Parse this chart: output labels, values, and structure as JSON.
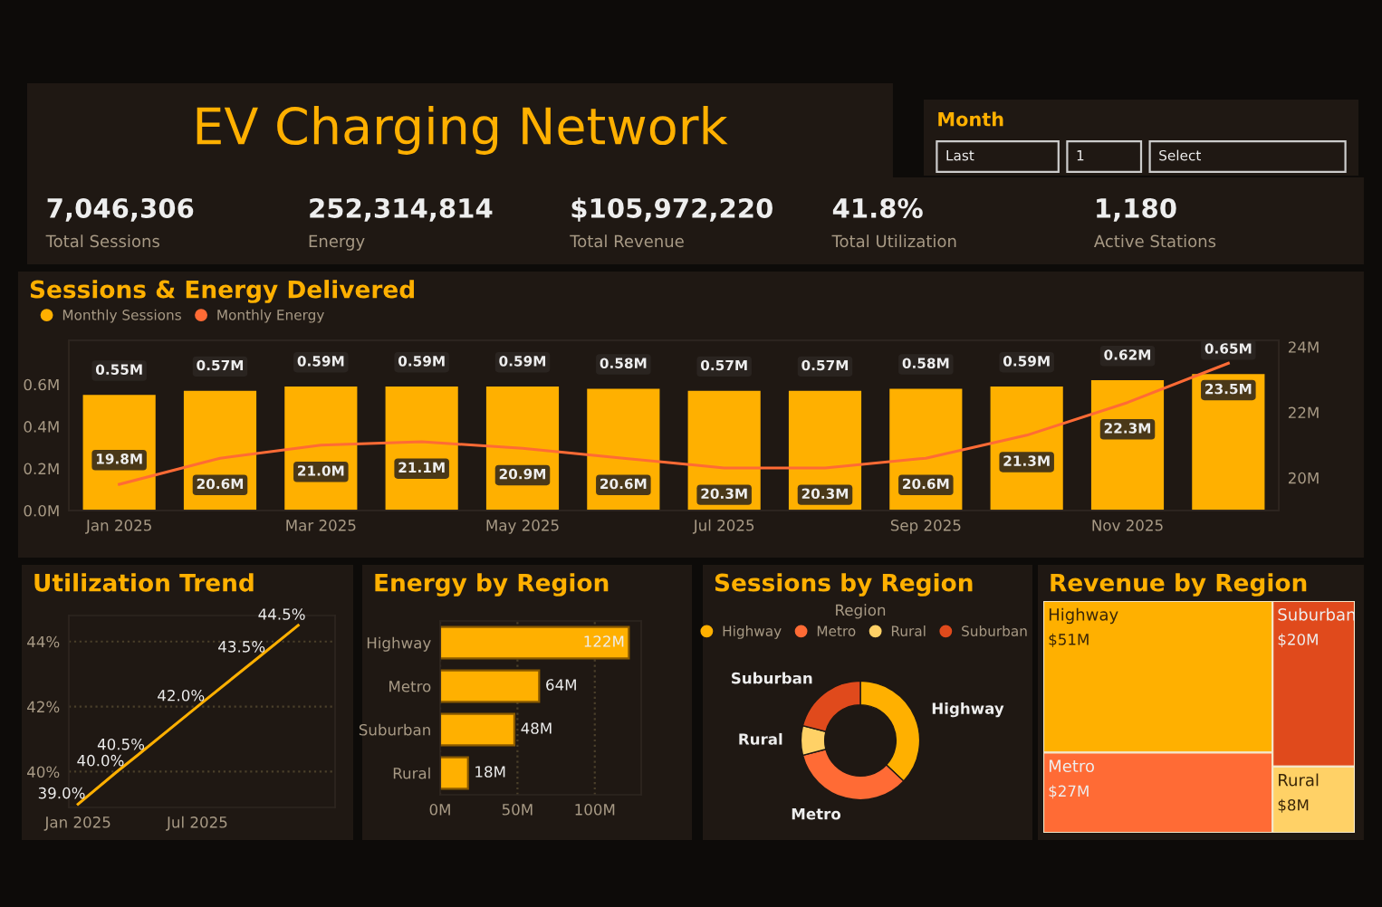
{
  "chart_data": [
    {
      "type": "other",
      "title": "EV Charging Network"
    },
    {
      "type": "other",
      "title": "Month",
      "annotations": [
        "Last",
        "1",
        "Select"
      ]
    },
    {
      "type": "other",
      "annotations": [
        "7,046,306",
        "Total Sessions",
        "252,314,814",
        "Energy",
        "$105,972,220",
        "Total Revenue",
        "41.8%",
        "Total Utilization",
        "1,180",
        "Active Stations"
      ]
    },
    {
      "type": "bar",
      "title": "Sessions & Energy Delivered",
      "legend": "top left",
      "categories": [
        "Jan 2025",
        null,
        "Mar 2025",
        null,
        "May 2025",
        null,
        "Jul 2025",
        null,
        "Sep 2025",
        null,
        "Nov 2025",
        null
      ],
      "series": [
        {
          "name": "Monthly Sessions",
          "type": "bar",
          "color": "#ffb000",
          "values": [
            0.55,
            0.57,
            0.59,
            0.59,
            0.59,
            0.58,
            0.57,
            0.57,
            0.58,
            0.59,
            0.62,
            0.65
          ],
          "value_labels": [
            "0.55M",
            "0.57M",
            "0.59M",
            "0.59M",
            "0.59M",
            "0.58M",
            "0.57M",
            "0.57M",
            "0.58M",
            "0.59M",
            "0.62M",
            "0.65M"
          ]
        },
        {
          "name": "Monthly Energy",
          "type": "line",
          "axis": "y2",
          "color": "#ff6b35",
          "values": [
            19.8,
            20.6,
            21.0,
            21.1,
            20.9,
            20.6,
            20.3,
            20.3,
            20.6,
            21.3,
            22.3,
            23.5
          ],
          "value_labels": [
            "19.8M",
            "20.6M",
            "21.0M",
            "21.1M",
            "20.9M",
            "20.6M",
            "20.3M",
            "20.3M",
            "20.6M",
            "21.3M",
            "22.3M",
            "23.5M"
          ]
        }
      ],
      "ylim": [
        0,
        0.81
      ],
      "yticks": [
        {
          "value": 0,
          "label": "0.0M"
        },
        {
          "value": 0.2,
          "label": "0.2M"
        },
        {
          "value": 0.4,
          "label": "0.4M"
        },
        {
          "value": 0.6,
          "label": "0.6M"
        }
      ],
      "y2lim": [
        19,
        24.2
      ],
      "y2ticks": [
        {
          "value": 20,
          "label": "20M"
        },
        {
          "value": 22,
          "label": "22M"
        },
        {
          "value": 24,
          "label": "24M"
        }
      ]
    },
    {
      "type": "line",
      "title": "Utilization Trend",
      "x": [
        "2025-01",
        "2025-03",
        "2025-04",
        "2025-07",
        "2025-10",
        "2025-12"
      ],
      "series": [
        {
          "color": "#ffb000",
          "values": [
            39.0,
            40.0,
            40.5,
            42.0,
            43.5,
            44.5
          ],
          "value_labels": [
            "39.0%",
            "40.0%",
            "40.5%",
            "42.0%",
            "43.5%",
            "44.5%"
          ]
        }
      ],
      "xlim": [
        "2024-12-18",
        "2026-01-26"
      ],
      "xticks": [
        {
          "value": "2025-01",
          "label": "Jan 2025"
        },
        {
          "value": "2025-07",
          "label": "Jul 2025"
        }
      ],
      "ylim": [
        38.9,
        44.8
      ],
      "yticks": [
        {
          "value": 40,
          "label": "40%"
        },
        {
          "value": 42,
          "label": "42%"
        },
        {
          "value": 44,
          "label": "44%"
        }
      ],
      "grid": "y"
    },
    {
      "type": "bar",
      "title": "Energy by Region",
      "orientation": "horizontal",
      "categories": [
        "Highway",
        "Metro",
        "Suburban",
        "Rural"
      ],
      "values": [
        122,
        64,
        48,
        18
      ],
      "value_labels": [
        "122M",
        "64M",
        "48M",
        "18M"
      ],
      "color": "#ffb000",
      "xlim": [
        0,
        130
      ],
      "xticks": [
        {
          "value": 0,
          "label": "0M"
        },
        {
          "value": 50,
          "label": "50M"
        },
        {
          "value": 100,
          "label": "100M"
        }
      ],
      "grid": "x"
    },
    {
      "type": "donut",
      "title": "Sessions by Region",
      "legend_title": "Region",
      "legend": "top",
      "categories": [
        "Highway",
        "Metro",
        "Rural",
        "Suburban"
      ],
      "values": [
        37,
        34,
        8,
        21
      ],
      "colors": [
        "#ffb000",
        "#ff6b35",
        "#ffd166",
        "#e04a1c"
      ]
    },
    {
      "type": "other",
      "title": "Revenue by Region",
      "categories": [
        "Highway",
        "Metro",
        "Suburban",
        "Rural"
      ],
      "values": [
        51,
        27,
        20,
        8
      ],
      "value_labels": [
        "$51M",
        "$27M",
        "$20M",
        "$8M"
      ],
      "colors": [
        "#ffb000",
        "#ff6b35",
        "#e04a1c",
        "#ffd166"
      ]
    }
  ]
}
